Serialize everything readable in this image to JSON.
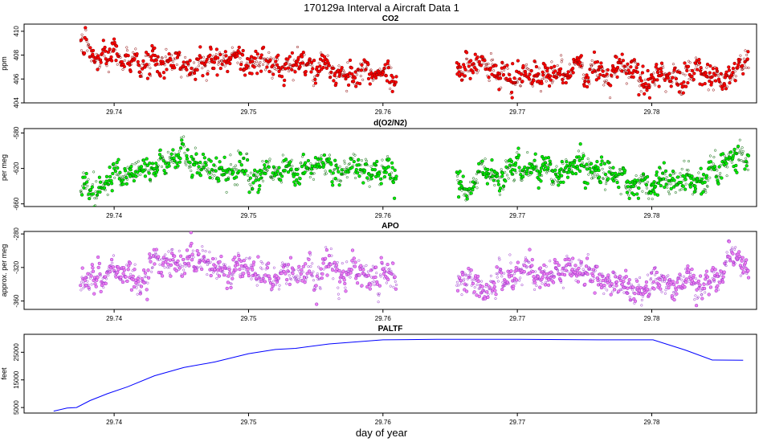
{
  "figure_title": "170129a   Interval a Aircraft Data 1",
  "x_axis_label": "day of year",
  "colors": {
    "co2": "#ff0000",
    "co2_stroke": "#8b0000",
    "o2n2": "#00ee00",
    "o2n2_stroke": "#006400",
    "apo": "#ee82ee",
    "apo_stroke": "#9932cc",
    "paltf": "#0000ff",
    "axis": "#000000"
  },
  "chart_data": [
    {
      "id": "co2",
      "type": "scatter",
      "title": "CO2",
      "ylabel": "ppm",
      "xlim": [
        29.7333,
        29.7878
      ],
      "ylim": [
        404,
        410.6
      ],
      "xticks": [
        "29.74",
        "29.75",
        "29.76",
        "29.77",
        "29.78"
      ],
      "yticks": [
        "404",
        "406",
        "408",
        "410"
      ],
      "segments": [
        {
          "x_start": 29.7375,
          "x_end": 29.761
        },
        {
          "x_start": 29.7655,
          "x_end": 29.7872
        }
      ],
      "trend": [
        {
          "x": 29.7375,
          "y": 409.3
        },
        {
          "x": 29.7385,
          "y": 407.9
        },
        {
          "x": 29.742,
          "y": 407.1
        },
        {
          "x": 29.745,
          "y": 407.3
        },
        {
          "x": 29.75,
          "y": 407.2
        },
        {
          "x": 29.755,
          "y": 406.8
        },
        {
          "x": 29.761,
          "y": 406.3
        },
        {
          "x": 29.7655,
          "y": 406.9
        },
        {
          "x": 29.77,
          "y": 406.7
        },
        {
          "x": 29.775,
          "y": 406.5
        },
        {
          "x": 29.78,
          "y": 406.2
        },
        {
          "x": 29.7872,
          "y": 406.8
        }
      ],
      "noise": 0.8,
      "points_per_segment": 650
    },
    {
      "id": "o2n2",
      "type": "scatter",
      "title": "d(O2/N2)",
      "ylabel": "per meg",
      "xlim": [
        29.7333,
        29.7878
      ],
      "ylim": [
        -663,
        -575
      ],
      "xticks": [
        "29.74",
        "29.75",
        "29.76",
        "29.77",
        "29.78"
      ],
      "yticks": [
        "-660",
        "-620",
        "-580"
      ],
      "segments": [
        {
          "x_start": 29.7375,
          "x_end": 29.761
        },
        {
          "x_start": 29.7655,
          "x_end": 29.7872
        }
      ],
      "trend": [
        {
          "x": 29.7375,
          "y": -645
        },
        {
          "x": 29.74,
          "y": -630
        },
        {
          "x": 29.743,
          "y": -625
        },
        {
          "x": 29.745,
          "y": -608
        },
        {
          "x": 29.748,
          "y": -622
        },
        {
          "x": 29.752,
          "y": -628
        },
        {
          "x": 29.756,
          "y": -620
        },
        {
          "x": 29.761,
          "y": -624
        },
        {
          "x": 29.7655,
          "y": -635
        },
        {
          "x": 29.77,
          "y": -627
        },
        {
          "x": 29.775,
          "y": -622
        },
        {
          "x": 29.779,
          "y": -640
        },
        {
          "x": 29.782,
          "y": -635
        },
        {
          "x": 29.785,
          "y": -625
        },
        {
          "x": 29.786,
          "y": -596
        },
        {
          "x": 29.7872,
          "y": -622
        }
      ],
      "noise": 11,
      "points_per_segment": 650
    },
    {
      "id": "apo",
      "type": "scatter",
      "title": "APO",
      "ylabel": "approx. per meg",
      "xlim": [
        29.7333,
        29.7878
      ],
      "ylim": [
        -370,
        -277
      ],
      "xticks": [
        "29.74",
        "29.75",
        "29.76",
        "29.77",
        "29.78"
      ],
      "yticks": [
        "-360",
        "-320",
        "-280"
      ],
      "segments": [
        {
          "x_start": 29.7375,
          "x_end": 29.761
        },
        {
          "x_start": 29.7655,
          "x_end": 29.7872
        }
      ],
      "trend": [
        {
          "x": 29.7375,
          "y": -334
        },
        {
          "x": 29.742,
          "y": -328
        },
        {
          "x": 29.745,
          "y": -312
        },
        {
          "x": 29.748,
          "y": -322
        },
        {
          "x": 29.752,
          "y": -330
        },
        {
          "x": 29.756,
          "y": -324
        },
        {
          "x": 29.761,
          "y": -328
        },
        {
          "x": 29.7655,
          "y": -337
        },
        {
          "x": 29.77,
          "y": -330
        },
        {
          "x": 29.775,
          "y": -327
        },
        {
          "x": 29.779,
          "y": -345
        },
        {
          "x": 29.783,
          "y": -342
        },
        {
          "x": 29.785,
          "y": -336
        },
        {
          "x": 29.786,
          "y": -305
        },
        {
          "x": 29.7872,
          "y": -322
        }
      ],
      "noise": 12,
      "points_per_segment": 650
    },
    {
      "id": "paltf",
      "type": "line",
      "title": "PALTF",
      "ylabel": "feet",
      "xlim": [
        29.7333,
        29.7878
      ],
      "ylim": [
        3000,
        31500
      ],
      "xticks": [
        "29.74",
        "29.75",
        "29.76",
        "29.77",
        "29.78"
      ],
      "yticks": [
        "5000",
        "15000",
        "25000"
      ],
      "x": [
        29.7355,
        29.7365,
        29.7372,
        29.7382,
        29.7395,
        29.741,
        29.743,
        29.7452,
        29.7475,
        29.75,
        29.752,
        29.7535,
        29.756,
        29.76,
        29.764,
        29.77,
        29.776,
        29.7801,
        29.7825,
        29.7845,
        29.7868
      ],
      "y": [
        3700,
        4800,
        5000,
        7500,
        10000,
        12500,
        16500,
        19500,
        21500,
        24500,
        26000,
        26400,
        28000,
        29500,
        29700,
        29700,
        29500,
        29500,
        25800,
        22200,
        22100
      ]
    }
  ]
}
